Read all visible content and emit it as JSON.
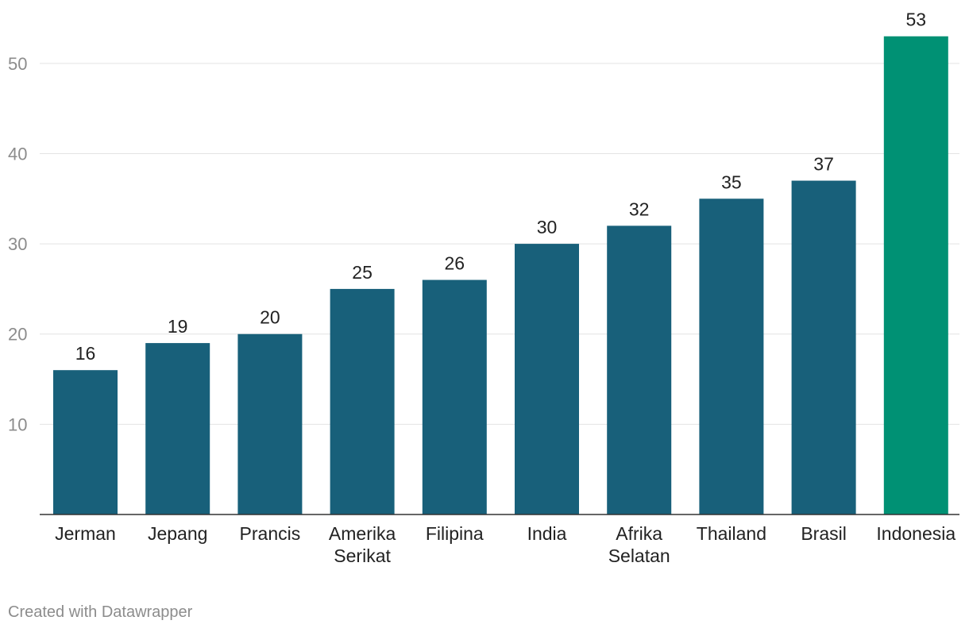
{
  "chart_data": {
    "type": "bar",
    "categories": [
      "Jerman",
      "Jepang",
      "Prancis",
      "Amerika Serikat",
      "Filipina",
      "India",
      "Afrika Selatan",
      "Thailand",
      "Brasil",
      "Indonesia"
    ],
    "category_lines": [
      [
        "Jerman"
      ],
      [
        "Jepang"
      ],
      [
        "Prancis"
      ],
      [
        "Amerika",
        "Serikat"
      ],
      [
        "Filipina"
      ],
      [
        "India"
      ],
      [
        "Afrika",
        "Selatan"
      ],
      [
        "Thailand"
      ],
      [
        "Brasil"
      ],
      [
        "Indonesia"
      ]
    ],
    "values": [
      16,
      19,
      20,
      25,
      26,
      30,
      32,
      35,
      37,
      53
    ],
    "highlight_category": "Indonesia",
    "ylim": [
      0,
      55
    ],
    "yticks": [
      10,
      20,
      30,
      40,
      50
    ],
    "grid": true,
    "data_labels": true,
    "title": "",
    "xlabel": "",
    "ylabel": ""
  },
  "colors": {
    "bar": "#18607a",
    "highlight": "#009174",
    "grid": "#e3e3e3",
    "axis": "#333333"
  },
  "footer": {
    "credit": "Created with Datawrapper"
  }
}
